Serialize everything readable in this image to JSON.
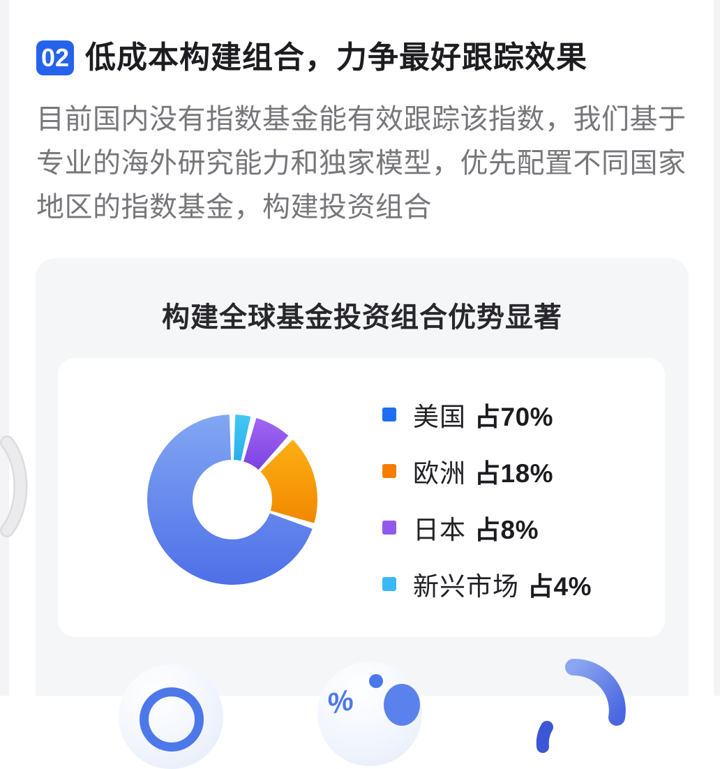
{
  "header": {
    "badge": "02",
    "title": "低成本构建组合，力争最好跟踪效果"
  },
  "intro": {
    "paragraph": "目前国内没有指数基金能有效跟踪该指数，我们基于\n专业的海外研究能力和独家模型，优先配置不同国家\n地区的指数基金，构建投资组合"
  },
  "card": {
    "title": "构建全球基金投资组合优势显著"
  },
  "chart_data": {
    "type": "pie",
    "variant": "donut",
    "title": "构建全球基金投资组合优势显著",
    "start_angle": "top",
    "direction": "clockwise",
    "hole_ratio": 0.47,
    "gap_degrees": 4,
    "segments": [
      {
        "label": "新兴市场",
        "value": 4,
        "color": "#45c7f5",
        "color2": "#29aeec"
      },
      {
        "label": "日本",
        "value": 8,
        "color": "#a067f2",
        "color2": "#7c42e2"
      },
      {
        "label": "欧洲",
        "value": 18,
        "color": "#fcb013",
        "color2": "#f18801"
      },
      {
        "label": "美国",
        "value": 70,
        "color": "#82a7f3",
        "color2": "#4e6fe7"
      }
    ],
    "legend_position": "right",
    "legend": [
      {
        "label": "美国",
        "value_text": "占70%",
        "color": "#1e6ef2"
      },
      {
        "label": "欧洲",
        "value_text": "占18%",
        "color": "#f57d01"
      },
      {
        "label": "日本",
        "value_text": "占8%",
        "color": "#9158f0"
      },
      {
        "label": "新兴市场",
        "value_text": "占4%",
        "color": "#38b9f5"
      }
    ]
  },
  "decor": {
    "percent_glyph": "%",
    "bottom_icons": [
      "donut-chart-icon",
      "percent-icon",
      "arc-chart-icon"
    ],
    "accent_blue": "#2563eb"
  }
}
